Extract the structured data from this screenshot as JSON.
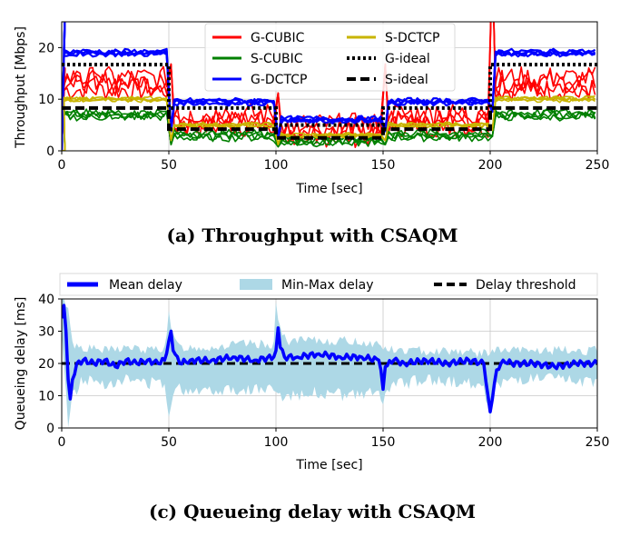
{
  "chart_data": [
    {
      "type": "line",
      "caption": "(a) Throughput with CSAQM",
      "xlabel": "Time [sec]",
      "ylabel": "Throughput [Mbps]",
      "xlim": [
        0,
        250
      ],
      "ylim": [
        0,
        25
      ],
      "xticks": [
        0,
        50,
        100,
        150,
        200,
        250
      ],
      "yticks": [
        0,
        10,
        20
      ],
      "grid": true,
      "legend_position": "top-center",
      "legend": [
        "G-CUBIC",
        "S-CUBIC",
        "G-DCTCP",
        "S-DCTCP",
        "G-ideal",
        "S-ideal"
      ],
      "series": [
        {
          "name": "G-CUBIC",
          "color": "#ff0000",
          "style": "solid",
          "segments": [
            [
              0,
              50,
              13
            ],
            [
              50,
              100,
              6
            ],
            [
              100,
              150,
              4
            ],
            [
              150,
              200,
              6
            ],
            [
              200,
              250,
              13
            ]
          ],
          "noise": 2.2,
          "lines": 4
        },
        {
          "name": "S-CUBIC",
          "color": "#008000",
          "style": "solid",
          "segments": [
            [
              0,
              50,
              7
            ],
            [
              50,
              100,
              3
            ],
            [
              100,
              150,
              2
            ],
            [
              150,
              200,
              3
            ],
            [
              200,
              250,
              7
            ]
          ],
          "noise": 0.8,
          "lines": 4
        },
        {
          "name": "G-DCTCP",
          "color": "#0000ff",
          "style": "solid",
          "segments": [
            [
              0,
              50,
              19
            ],
            [
              50,
              100,
              9.5
            ],
            [
              100,
              150,
              6
            ],
            [
              150,
              200,
              9.5
            ],
            [
              200,
              250,
              19
            ]
          ],
          "noise": 0.5,
          "lines": 4
        },
        {
          "name": "S-DCTCP",
          "color": "#c8b400",
          "style": "solid",
          "segments": [
            [
              0,
              50,
              10
            ],
            [
              50,
              100,
              5
            ],
            [
              100,
              150,
              3
            ],
            [
              150,
              200,
              5
            ],
            [
              200,
              250,
              10
            ]
          ],
          "noise": 0.4,
          "lines": 4
        },
        {
          "name": "G-ideal",
          "color": "#000000",
          "style": "dotted",
          "segments": [
            [
              0,
              50,
              16.7
            ],
            [
              50,
              100,
              8.3
            ],
            [
              100,
              150,
              5
            ],
            [
              150,
              200,
              8.3
            ],
            [
              200,
              250,
              16.7
            ]
          ]
        },
        {
          "name": "S-ideal",
          "color": "#000000",
          "style": "dashed",
          "segments": [
            [
              0,
              50,
              8.3
            ],
            [
              50,
              100,
              4.2
            ],
            [
              100,
              150,
              2.5
            ],
            [
              150,
              200,
              4.2
            ],
            [
              200,
              250,
              8.3
            ]
          ]
        }
      ]
    },
    {
      "type": "line",
      "caption": "(c) Queueing delay with CSAQM",
      "xlabel": "Time [sec]",
      "ylabel": "Queueing delay [ms]",
      "xlim": [
        0,
        250
      ],
      "ylim": [
        0,
        40
      ],
      "xticks": [
        0,
        50,
        100,
        150,
        200,
        250
      ],
      "yticks": [
        0,
        10,
        20,
        30,
        40
      ],
      "grid": true,
      "legend_position": "top",
      "legend": [
        "Mean delay",
        "Min-Max delay",
        "Delay threshold"
      ],
      "series": [
        {
          "name": "Mean delay",
          "color": "#0000ff",
          "style": "solid",
          "points": [
            [
              0,
              34
            ],
            [
              1,
              38
            ],
            [
              2,
              30
            ],
            [
              3,
              15
            ],
            [
              4,
              9
            ],
            [
              5,
              15
            ],
            [
              7,
              20
            ],
            [
              10,
              21
            ],
            [
              15,
              20
            ],
            [
              20,
              21
            ],
            [
              25,
              19
            ],
            [
              30,
              21
            ],
            [
              35,
              20
            ],
            [
              40,
              21
            ],
            [
              45,
              20
            ],
            [
              48,
              21
            ],
            [
              50,
              27
            ],
            [
              51,
              30
            ],
            [
              52,
              24
            ],
            [
              55,
              20
            ],
            [
              60,
              21
            ],
            [
              70,
              21
            ],
            [
              80,
              22
            ],
            [
              90,
              21
            ],
            [
              99,
              22
            ],
            [
              100,
              24
            ],
            [
              101,
              31
            ],
            [
              102,
              25
            ],
            [
              104,
              22
            ],
            [
              110,
              22
            ],
            [
              120,
              23
            ],
            [
              130,
              22
            ],
            [
              140,
              22
            ],
            [
              148,
              21
            ],
            [
              149,
              18
            ],
            [
              150,
              12
            ],
            [
              151,
              19
            ],
            [
              155,
              21
            ],
            [
              160,
              20
            ],
            [
              170,
              21
            ],
            [
              180,
              20
            ],
            [
              190,
              21
            ],
            [
              197,
              20
            ],
            [
              199,
              10
            ],
            [
              200,
              5
            ],
            [
              201,
              9
            ],
            [
              203,
              18
            ],
            [
              206,
              21
            ],
            [
              210,
              20
            ],
            [
              220,
              20
            ],
            [
              230,
              19
            ],
            [
              240,
              20
            ],
            [
              250,
              20
            ]
          ]
        },
        {
          "name": "Min-Max delay",
          "color": "#add8e6",
          "upper": [
            [
              0,
              40
            ],
            [
              3,
              38
            ],
            [
              5,
              26
            ],
            [
              10,
              25
            ],
            [
              20,
              24
            ],
            [
              30,
              25
            ],
            [
              40,
              24
            ],
            [
              48,
              25
            ],
            [
              50,
              35
            ],
            [
              52,
              28
            ],
            [
              55,
              25
            ],
            [
              70,
              25
            ],
            [
              85,
              26
            ],
            [
              99,
              26
            ],
            [
              100,
              39
            ],
            [
              102,
              30
            ],
            [
              105,
              27
            ],
            [
              120,
              27
            ],
            [
              135,
              27
            ],
            [
              148,
              26
            ],
            [
              150,
              25
            ],
            [
              155,
              24
            ],
            [
              170,
              24
            ],
            [
              185,
              24
            ],
            [
              197,
              23
            ],
            [
              200,
              24
            ],
            [
              205,
              24
            ],
            [
              220,
              24
            ],
            [
              235,
              24
            ],
            [
              250,
              24
            ]
          ],
          "lower": [
            [
              0,
              29
            ],
            [
              2,
              10
            ],
            [
              3,
              2
            ],
            [
              5,
              10
            ],
            [
              10,
              15
            ],
            [
              20,
              14
            ],
            [
              30,
              15
            ],
            [
              40,
              14
            ],
            [
              48,
              14
            ],
            [
              50,
              3
            ],
            [
              52,
              12
            ],
            [
              60,
              12
            ],
            [
              75,
              12
            ],
            [
              90,
              12
            ],
            [
              99,
              12
            ],
            [
              101,
              9
            ],
            [
              104,
              10
            ],
            [
              120,
              11
            ],
            [
              135,
              10
            ],
            [
              148,
              11
            ],
            [
              150,
              7
            ],
            [
              153,
              13
            ],
            [
              170,
              15
            ],
            [
              185,
              14
            ],
            [
              197,
              14
            ],
            [
              200,
              2
            ],
            [
              203,
              14
            ],
            [
              215,
              15
            ],
            [
              230,
              15
            ],
            [
              250,
              14
            ]
          ]
        },
        {
          "name": "Delay threshold",
          "color": "#000000",
          "style": "dashed",
          "points": [
            [
              0,
              20
            ],
            [
              250,
              20
            ]
          ]
        }
      ]
    }
  ]
}
